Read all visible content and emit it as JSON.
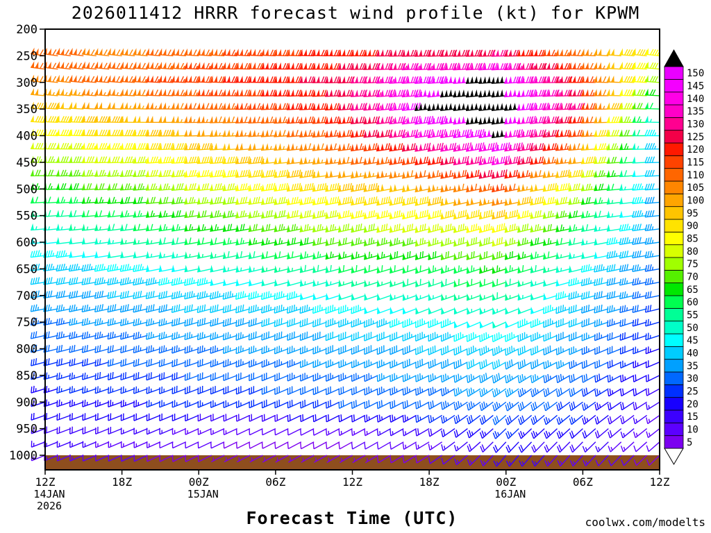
{
  "chart_data": {
    "type": "wind-barb-profile",
    "title": "2026011412 HRRR forecast wind profile (kt) for KPWM",
    "xlabel": "Forecast Time (UTC)",
    "x_hours_range": [
      0,
      48
    ],
    "hour_step": 1,
    "x_tick_hours": [
      0,
      6,
      12,
      18,
      24,
      30,
      36,
      42,
      48
    ],
    "x_tick_labels": [
      "12Z",
      "18Z",
      "00Z",
      "06Z",
      "12Z",
      "18Z",
      "00Z",
      "06Z",
      "12Z"
    ],
    "x_date_labels": [
      {
        "hour": 0,
        "lines": [
          "14JAN",
          "2026"
        ]
      },
      {
        "hour": 12,
        "lines": [
          "15JAN"
        ]
      },
      {
        "hour": 36,
        "lines": [
          "16JAN"
        ]
      }
    ],
    "y_range": [
      200,
      1000
    ],
    "ylabel_ticks": [
      200,
      250,
      300,
      350,
      400,
      450,
      500,
      550,
      600,
      650,
      700,
      750,
      800,
      850,
      900,
      950,
      1000
    ],
    "render_levels": {
      "min": 250,
      "max": 1000,
      "step": 25
    },
    "sample_hours": [
      0,
      6,
      12,
      18,
      24,
      30,
      36,
      42,
      48
    ],
    "levels": [
      {
        "p": 250,
        "speeds": [
          112,
          108,
          112,
          118,
          122,
          128,
          130,
          110,
          86
        ],
        "dirs": [
          278,
          276,
          274,
          272,
          270,
          268,
          268,
          272,
          276
        ]
      },
      {
        "p": 300,
        "speeds": [
          108,
          112,
          118,
          122,
          128,
          146,
          152,
          124,
          78
        ],
        "dirs": [
          276,
          274,
          272,
          270,
          268,
          266,
          266,
          270,
          274
        ]
      },
      {
        "p": 350,
        "speeds": [
          96,
          102,
          110,
          118,
          126,
          150,
          156,
          130,
          60
        ],
        "dirs": [
          274,
          272,
          270,
          268,
          266,
          264,
          264,
          268,
          272
        ]
      },
      {
        "p": 400,
        "speeds": [
          86,
          92,
          100,
          108,
          118,
          140,
          150,
          118,
          46
        ],
        "dirs": [
          272,
          270,
          268,
          266,
          264,
          262,
          262,
          266,
          270
        ]
      },
      {
        "p": 450,
        "speeds": [
          76,
          82,
          90,
          98,
          108,
          120,
          140,
          100,
          42
        ],
        "dirs": [
          270,
          268,
          266,
          264,
          262,
          260,
          260,
          264,
          268
        ]
      },
      {
        "p": 500,
        "speeds": [
          66,
          72,
          80,
          88,
          95,
          100,
          116,
          82,
          40
        ],
        "dirs": [
          268,
          266,
          264,
          262,
          260,
          258,
          258,
          262,
          266
        ]
      },
      {
        "p": 550,
        "speeds": [
          57,
          62,
          70,
          78,
          85,
          88,
          96,
          68,
          38
        ],
        "dirs": [
          266,
          264,
          262,
          260,
          258,
          256,
          256,
          260,
          264
        ]
      },
      {
        "p": 600,
        "speeds": [
          48,
          54,
          60,
          66,
          72,
          75,
          80,
          58,
          36
        ],
        "dirs": [
          264,
          262,
          260,
          258,
          256,
          254,
          254,
          258,
          262
        ]
      },
      {
        "p": 650,
        "speeds": [
          42,
          46,
          50,
          55,
          60,
          62,
          66,
          50,
          34
        ],
        "dirs": [
          262,
          260,
          258,
          256,
          254,
          252,
          252,
          256,
          260
        ]
      },
      {
        "p": 700,
        "speeds": [
          38,
          40,
          43,
          46,
          50,
          54,
          58,
          44,
          31
        ],
        "dirs": [
          260,
          258,
          256,
          254,
          252,
          250,
          250,
          254,
          258
        ]
      },
      {
        "p": 750,
        "speeds": [
          34,
          36,
          38,
          40,
          43,
          46,
          50,
          40,
          27
        ],
        "dirs": [
          258,
          256,
          254,
          252,
          250,
          248,
          246,
          250,
          254
        ]
      },
      {
        "p": 800,
        "speeds": [
          30,
          32,
          34,
          36,
          38,
          40,
          44,
          36,
          24
        ],
        "dirs": [
          256,
          254,
          252,
          250,
          248,
          246,
          242,
          246,
          250
        ]
      },
      {
        "p": 850,
        "speeds": [
          26,
          28,
          30,
          32,
          34,
          36,
          38,
          32,
          20
        ],
        "dirs": [
          254,
          252,
          250,
          248,
          246,
          244,
          238,
          240,
          244
        ]
      },
      {
        "p": 900,
        "speeds": [
          23,
          24,
          26,
          28,
          30,
          32,
          34,
          28,
          16
        ],
        "dirs": [
          252,
          250,
          248,
          246,
          244,
          242,
          232,
          234,
          238
        ]
      },
      {
        "p": 950,
        "speeds": [
          19,
          18,
          14,
          11,
          13,
          18,
          26,
          22,
          13
        ],
        "dirs": [
          250,
          248,
          246,
          244,
          242,
          240,
          226,
          228,
          232
        ]
      },
      {
        "p": 1000,
        "speeds": [
          14,
          11,
          8,
          6,
          6,
          9,
          16,
          14,
          9
        ],
        "dirs": [
          248,
          246,
          244,
          242,
          240,
          238,
          220,
          222,
          226
        ]
      }
    ],
    "speed_legend": {
      "values": [
        5,
        10,
        15,
        20,
        25,
        30,
        35,
        40,
        45,
        50,
        55,
        60,
        65,
        70,
        75,
        80,
        85,
        90,
        95,
        100,
        105,
        110,
        115,
        120,
        125,
        130,
        135,
        140,
        145,
        150
      ],
      "colors": [
        "#7c00f0",
        "#5c00ff",
        "#3c00ff",
        "#1800ff",
        "#0030ff",
        "#0068ff",
        "#00a0ff",
        "#00ccff",
        "#00ffff",
        "#00ffc8",
        "#00ff96",
        "#00ff50",
        "#00e800",
        "#55f000",
        "#a0ff00",
        "#d8ff00",
        "#ffff00",
        "#ffe300",
        "#ffc400",
        "#ffa500",
        "#ff8600",
        "#ff6600",
        "#ff4300",
        "#ff1900",
        "#f30048",
        "#ff0090",
        "#ff00c8",
        "#ff00e6",
        "#f400ff",
        "#e900ff"
      ],
      "over_color": "#000000",
      "under_style": "open-arrow"
    },
    "ground_band": {
      "color": "#8e4e1e",
      "pressure_from": 1000
    },
    "watermark": {
      "text": "coolwx.com/modelts",
      "color": "#ff5540"
    }
  }
}
